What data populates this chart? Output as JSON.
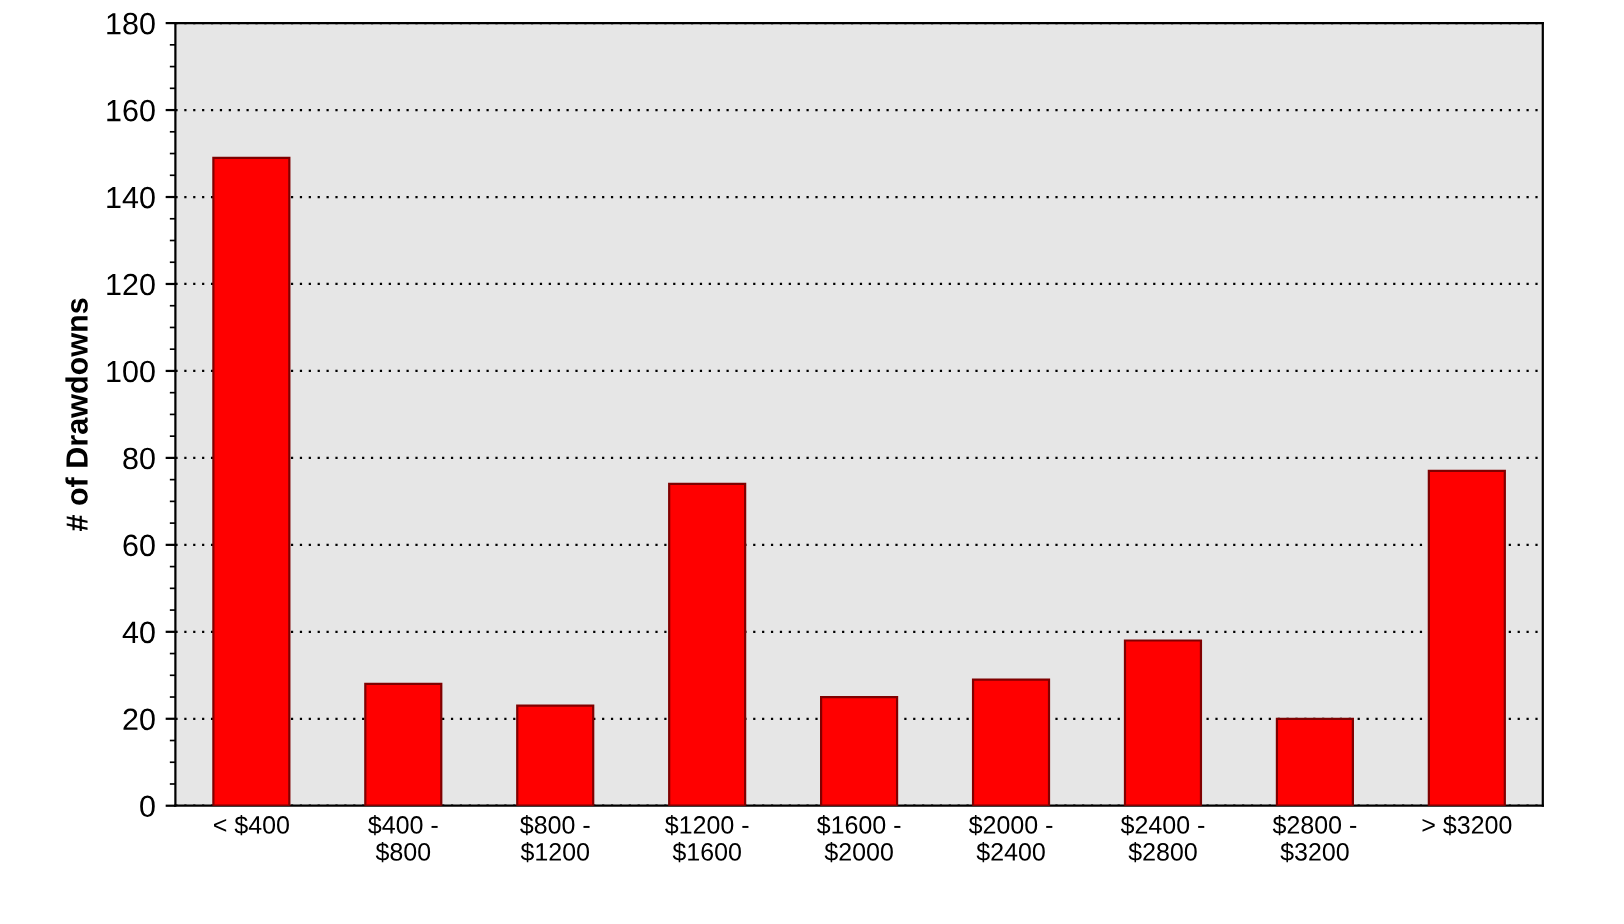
{
  "chart_data": {
    "type": "bar",
    "ylabel": "# of Drawdowns",
    "categories": [
      "< $400",
      "$400 -\n$800",
      "$800 -\n$1200",
      "$1200 -\n$1600",
      "$1600 -\n$2000",
      "$2000 -\n$2400",
      "$2400 -\n$2800",
      "$2800 -\n$3200",
      "> $3200"
    ],
    "values": [
      149,
      28,
      23,
      74,
      25,
      29,
      38,
      20,
      77
    ],
    "color": "#ff0000",
    "ylim": [
      0,
      180
    ],
    "yticks": [
      0,
      20,
      40,
      60,
      80,
      100,
      120,
      140,
      160,
      180
    ],
    "grid": "y"
  }
}
